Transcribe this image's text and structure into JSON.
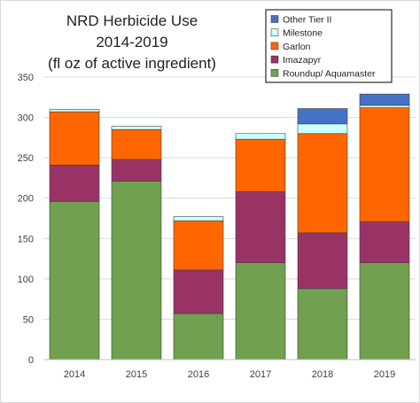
{
  "chart_data": {
    "type": "bar",
    "stacked": true,
    "title_lines": [
      "NRD Herbicide Use",
      "2014-2019",
      "(fl oz of active ingredient)"
    ],
    "xlabel": "",
    "ylabel": "",
    "categories": [
      "2014",
      "2015",
      "2016",
      "2017",
      "2018",
      "2019"
    ],
    "ylim": [
      0,
      350
    ],
    "yticks": [
      0,
      50,
      100,
      150,
      200,
      250,
      300,
      350
    ],
    "grid": true,
    "legend_position": "top-right",
    "series": [
      {
        "name": "Roundup/ Aquamaster",
        "color": "#70a050",
        "values": [
          196,
          221,
          57,
          120,
          88,
          120
        ]
      },
      {
        "name": "Imazapyr",
        "color": "#993366",
        "values": [
          45,
          27,
          54,
          88,
          69,
          51
        ]
      },
      {
        "name": "Garlon",
        "color": "#ff6600",
        "values": [
          66,
          37,
          61,
          65,
          123,
          141
        ]
      },
      {
        "name": "Milestone",
        "color": "#ccffff",
        "values": [
          3,
          4,
          5,
          7,
          12,
          3
        ]
      },
      {
        "name": "Other Tier II",
        "color": "#4472c4",
        "values": [
          0,
          0,
          0,
          0,
          19,
          14
        ]
      }
    ],
    "legend_order": [
      "Other Tier II",
      "Milestone",
      "Garlon",
      "Imazapyr",
      "Roundup/ Aquamaster"
    ]
  }
}
